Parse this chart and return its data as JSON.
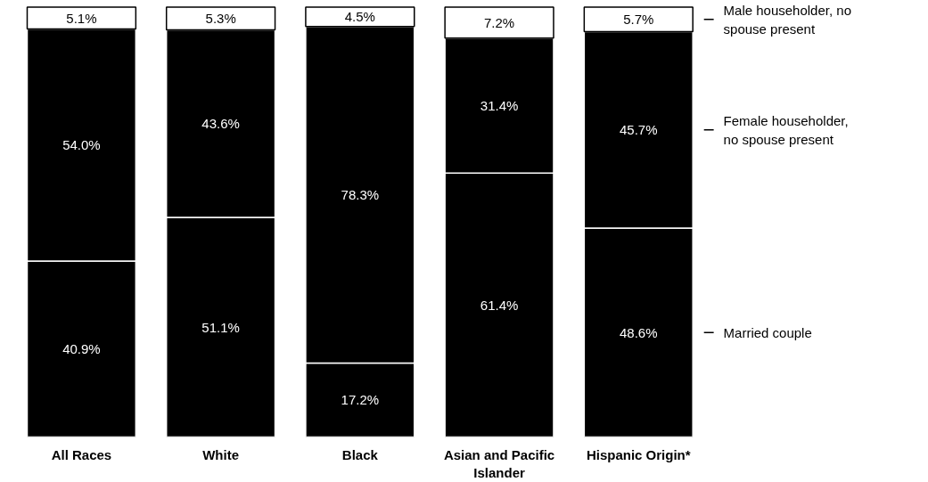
{
  "chart_data": {
    "type": "bar",
    "stacked": true,
    "tick_labels": "x",
    "categories": [
      "All Races",
      "White",
      "Black",
      "Asian and Pacific Islander",
      "Hispanic Origin*"
    ],
    "series": [
      {
        "name": "Married couple",
        "color": "#000000",
        "values": [
          40.9,
          51.1,
          17.2,
          61.4,
          48.6
        ],
        "value_labels": [
          "40.9%",
          "51.1%",
          "17.2%",
          "61.4%",
          "48.6%"
        ]
      },
      {
        "name": "Female householder, no spouse present",
        "color": "#000000",
        "values": [
          54.0,
          43.6,
          78.3,
          31.4,
          45.7
        ],
        "value_labels": [
          "54.0%",
          "43.6%",
          "78.3%",
          "31.4%",
          "45.7%"
        ]
      },
      {
        "name": "Male householder, no spouse present",
        "color": "#ffffff",
        "values": [
          5.1,
          5.3,
          4.5,
          7.2,
          5.7
        ],
        "value_labels": [
          "5.1%",
          "5.3%",
          "4.5%",
          "7.2%",
          "5.7%"
        ]
      }
    ]
  }
}
